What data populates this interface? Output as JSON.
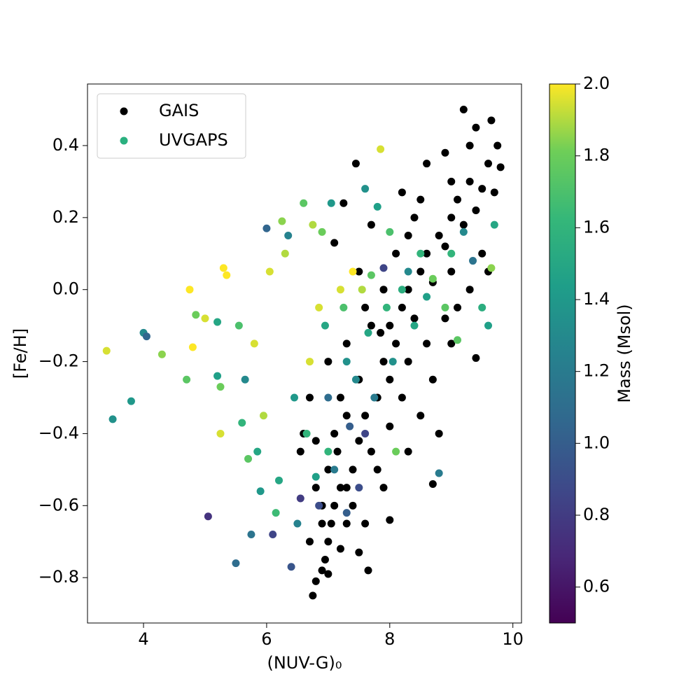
{
  "chart_data": {
    "type": "scatter",
    "xlabel": "(NUV-G)₀",
    "ylabel": "[Fe/H]",
    "xlim": [
      3.09,
      10.14
    ],
    "ylim": [
      -0.926,
      0.571
    ],
    "xticks": [
      4,
      6,
      8,
      10
    ],
    "yticks": [
      {
        "value": -0.8,
        "label": "−0.8"
      },
      {
        "value": -0.6,
        "label": "−0.6"
      },
      {
        "value": -0.4,
        "label": "−0.4"
      },
      {
        "value": -0.2,
        "label": "−0.2"
      },
      {
        "value": 0,
        "label": "0.0"
      },
      0.2,
      0.4
    ],
    "legend": "upper left",
    "colormap": "viridis",
    "colorbar": {
      "label": "Mass (Msol)",
      "lim": [
        0.5,
        2.0
      ],
      "ticks": [
        0.6,
        0.8,
        {
          "value": 1.0,
          "label": "1.0"
        },
        1.2,
        1.4,
        1.6,
        1.8,
        {
          "value": 2.0,
          "label": "2.0"
        }
      ]
    },
    "series": [
      {
        "name": "GAIS",
        "color": "#000000",
        "x": [
          6.75,
          6.8,
          6.9,
          7.0,
          7.05,
          7.1,
          7.2,
          7.3,
          7.0,
          6.9,
          7.15,
          7.4,
          7.5,
          7.6,
          7.7,
          7.3,
          7.2,
          7.5,
          7.8,
          7.9,
          8.0,
          8.1,
          8.0,
          7.85,
          8.2,
          8.3,
          8.4,
          8.5,
          8.6,
          8.7,
          8.8,
          8.9,
          9.0,
          9.1,
          9.2,
          9.3,
          9.4,
          9.5,
          9.6,
          9.75,
          9.8,
          9.2,
          9.65,
          9.4,
          8.6,
          8.9,
          8.2,
          7.45,
          7.25,
          7.1,
          7.7,
          8.4,
          8.1,
          7.6,
          7.3,
          7.0,
          6.7,
          6.6,
          6.55,
          6.8,
          7.1,
          7.4,
          7.6,
          7.65,
          7.5,
          7.0,
          6.95,
          7.9,
          8.0,
          8.3,
          8.5,
          8.7,
          8.8,
          8.7,
          9.0,
          9.1,
          9.3,
          9.4,
          9.5,
          9.6,
          8.6,
          8.3,
          8.0,
          7.8,
          7.2,
          7.3,
          6.9,
          6.7,
          6.8,
          7.9,
          8.5,
          9.0,
          9.3,
          8.2,
          7.7,
          8.9,
          7.5,
          8.3,
          9.7,
          9.0
        ],
        "values": [
          -0.85,
          -0.81,
          -0.78,
          -0.7,
          -0.65,
          -0.6,
          -0.72,
          -0.55,
          -0.5,
          -0.6,
          -0.45,
          -0.5,
          -0.42,
          -0.35,
          -0.45,
          -0.35,
          -0.3,
          -0.25,
          -0.3,
          -0.2,
          -0.25,
          -0.15,
          -0.1,
          -0.12,
          -0.05,
          0.0,
          -0.08,
          0.05,
          0.1,
          0.02,
          0.15,
          0.12,
          0.2,
          0.25,
          0.18,
          0.3,
          0.22,
          0.28,
          0.35,
          0.4,
          0.34,
          0.5,
          0.47,
          0.45,
          0.35,
          0.38,
          0.27,
          0.35,
          0.24,
          0.13,
          0.18,
          0.2,
          0.1,
          -0.05,
          -0.15,
          -0.2,
          -0.3,
          -0.4,
          -0.45,
          -0.55,
          -0.4,
          -0.6,
          -0.65,
          -0.78,
          -0.73,
          -0.79,
          -0.75,
          -0.55,
          -0.64,
          -0.45,
          -0.35,
          -0.25,
          -0.4,
          -0.54,
          -0.15,
          -0.05,
          0.0,
          -0.19,
          0.1,
          0.05,
          -0.15,
          -0.2,
          -0.38,
          -0.5,
          -0.55,
          -0.65,
          -0.65,
          -0.7,
          -0.42,
          0.0,
          0.25,
          0.3,
          0.4,
          -0.3,
          -0.1,
          -0.08,
          0.05,
          0.15,
          0.27,
          0.05
        ]
      },
      {
        "name": "UVGAPS",
        "color": "#2ab07f",
        "x": [
          3.4,
          3.5,
          3.8,
          4.0,
          4.05,
          4.3,
          4.7,
          4.75,
          4.8,
          4.85,
          5.0,
          5.05,
          5.2,
          5.2,
          5.25,
          5.25,
          5.3,
          5.35,
          5.5,
          5.55,
          5.6,
          5.65,
          5.7,
          5.75,
          5.8,
          5.85,
          5.9,
          5.95,
          6.0,
          6.05,
          6.1,
          6.15,
          6.2,
          6.25,
          6.3,
          6.35,
          6.4,
          6.45,
          6.5,
          6.55,
          6.6,
          6.65,
          6.7,
          6.75,
          6.8,
          6.85,
          6.9,
          6.95,
          7.0,
          7.05,
          7.1,
          7.2,
          7.25,
          7.3,
          7.35,
          7.4,
          7.45,
          7.5,
          7.55,
          7.6,
          7.65,
          7.7,
          7.75,
          7.8,
          7.85,
          7.9,
          7.95,
          8.0,
          8.05,
          8.1,
          8.2,
          8.3,
          8.4,
          8.5,
          8.6,
          8.7,
          8.8,
          8.9,
          9.0,
          9.1,
          9.2,
          9.35,
          9.5,
          9.6,
          9.7,
          9.65,
          7.6,
          7.0,
          7.3,
          6.85
        ],
        "values": [
          -0.17,
          -0.36,
          -0.31,
          -0.12,
          -0.13,
          -0.18,
          -0.25,
          0.0,
          -0.16,
          -0.07,
          -0.08,
          -0.63,
          -0.09,
          -0.24,
          -0.27,
          -0.4,
          0.06,
          0.04,
          -0.76,
          -0.1,
          -0.37,
          -0.25,
          -0.47,
          -0.68,
          -0.15,
          -0.45,
          -0.56,
          -0.35,
          0.17,
          0.05,
          -0.68,
          -0.62,
          -0.53,
          0.19,
          0.1,
          0.15,
          -0.77,
          -0.3,
          -0.65,
          -0.58,
          0.24,
          -0.4,
          -0.2,
          0.18,
          -0.52,
          -0.6,
          0.16,
          -0.1,
          -0.3,
          0.24,
          -0.5,
          0.0,
          -0.05,
          -0.2,
          -0.38,
          0.05,
          -0.25,
          -0.55,
          0.0,
          -0.4,
          -0.12,
          0.04,
          -0.3,
          0.23,
          0.39,
          0.06,
          -0.05,
          0.16,
          -0.2,
          -0.45,
          0.0,
          0.05,
          -0.1,
          0.1,
          -0.02,
          0.03,
          -0.51,
          -0.05,
          0.1,
          -0.14,
          0.16,
          0.08,
          -0.05,
          -0.1,
          0.18,
          0.06,
          0.28,
          -0.45,
          -0.62,
          -0.05
        ],
        "mass": [
          1.95,
          1.35,
          1.4,
          1.3,
          1.05,
          1.85,
          1.75,
          2.0,
          2.0,
          1.8,
          1.95,
          0.75,
          1.5,
          1.45,
          1.8,
          1.95,
          2.0,
          2.0,
          1.1,
          1.7,
          1.6,
          1.3,
          1.75,
          1.15,
          1.95,
          1.5,
          1.4,
          1.9,
          1.05,
          1.95,
          0.85,
          1.65,
          1.5,
          1.85,
          1.9,
          1.25,
          0.95,
          1.4,
          1.25,
          0.8,
          1.75,
          1.6,
          1.95,
          1.9,
          1.45,
          0.9,
          1.8,
          1.5,
          1.1,
          1.4,
          1.2,
          1.95,
          1.7,
          1.35,
          1.0,
          2.0,
          1.3,
          0.9,
          1.9,
          0.85,
          1.5,
          1.75,
          1.2,
          1.45,
          1.95,
          0.85,
          1.6,
          1.7,
          1.35,
          1.8,
          1.55,
          1.3,
          1.5,
          1.6,
          1.45,
          1.8,
          1.2,
          1.75,
          1.6,
          1.75,
          1.3,
          1.15,
          1.55,
          1.45,
          1.5,
          1.85,
          1.35,
          1.6,
          1.0,
          1.95
        ]
      }
    ]
  }
}
